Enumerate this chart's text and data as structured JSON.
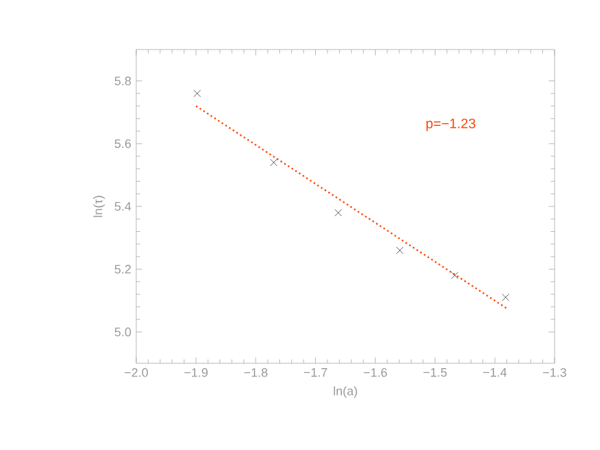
{
  "chart_data": {
    "type": "scatter",
    "xlabel": "ln(a)",
    "ylabel": "ln(τ)",
    "xlim": [
      -2.0,
      -1.3
    ],
    "ylim": [
      4.9,
      5.9
    ],
    "xticks": [
      {
        "value": -2.0,
        "label": "−2.0"
      },
      {
        "value": -1.9,
        "label": "−1.9"
      },
      {
        "value": -1.8,
        "label": "−1.8"
      },
      {
        "value": -1.7,
        "label": "−1.7"
      },
      {
        "value": -1.6,
        "label": "−1.6"
      },
      {
        "value": -1.5,
        "label": "−1.5"
      },
      {
        "value": -1.4,
        "label": "−1.4"
      },
      {
        "value": -1.3,
        "label": "−1.3"
      }
    ],
    "yticks": [
      {
        "value": 5.0,
        "label": "5.0"
      },
      {
        "value": 5.2,
        "label": "5.2"
      },
      {
        "value": 5.4,
        "label": "5.4"
      },
      {
        "value": 5.6,
        "label": "5.6"
      },
      {
        "value": 5.8,
        "label": "5.8"
      }
    ],
    "series": [
      {
        "color": "#333333",
        "marker": "cross",
        "x": [
          -1.898,
          -1.77,
          -1.662,
          -1.559,
          -1.467,
          -1.382
        ],
        "values": [
          5.76,
          5.54,
          5.38,
          5.26,
          5.18,
          5.11
        ]
      },
      {
        "type": "line",
        "color": "#ff4500",
        "line_style": "dotted",
        "x": [
          -1.9,
          -1.38
        ],
        "values": [
          5.72,
          5.075
        ]
      }
    ],
    "annotations": [
      "p=−1.23"
    ],
    "grid": false
  }
}
